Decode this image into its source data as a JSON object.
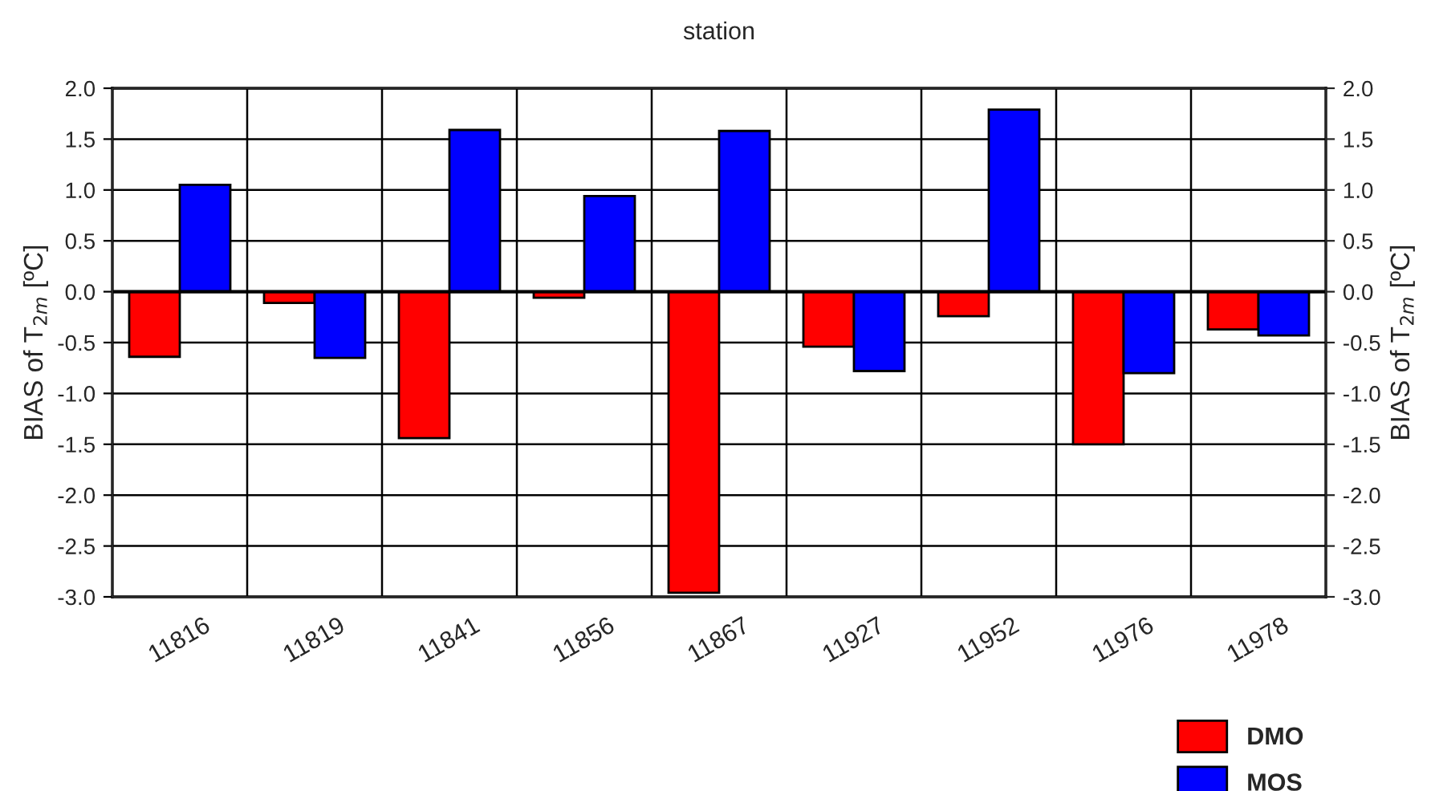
{
  "chart_data": {
    "type": "bar",
    "title": "station",
    "ylabel": "BIAS of T$_{2m}$ [ºC]",
    "y2label": "BIAS of T$_{2m}$ [ºC]",
    "categories": [
      "11816",
      "11819",
      "11841",
      "11856",
      "11867",
      "11927",
      "11952",
      "11976",
      "11978"
    ],
    "series": [
      {
        "name": "DMO",
        "color": "#ff0000",
        "values": [
          -0.64,
          -0.11,
          -1.44,
          -0.06,
          -2.96,
          -0.54,
          -0.24,
          -1.5,
          -0.37
        ]
      },
      {
        "name": "MOS",
        "color": "#0000ff",
        "values": [
          1.05,
          -0.65,
          1.59,
          0.94,
          1.58,
          -0.78,
          1.79,
          -0.8,
          -0.43
        ]
      }
    ],
    "ylim": [
      -3.0,
      2.0
    ],
    "yticks": [
      {
        "value": -3,
        "label": "-3.0"
      },
      {
        "value": -2.5,
        "label": "-2.5"
      },
      {
        "value": -2,
        "label": "-2.0"
      },
      {
        "value": -1.5,
        "label": "-1.5"
      },
      {
        "value": -1,
        "label": "-1.0"
      },
      {
        "value": -0.5,
        "label": "-0.5"
      },
      {
        "value": 0,
        "label": "0.0"
      },
      {
        "value": 0.5,
        "label": "0.5"
      },
      {
        "value": 1,
        "label": "1.0"
      },
      {
        "value": 1.5,
        "label": "1.5"
      },
      {
        "value": 2,
        "label": "2.0"
      }
    ],
    "y2lim": [
      -3.0,
      2.0
    ],
    "y2ticks": [
      {
        "value": -3,
        "label": "-3.0"
      },
      {
        "value": -2.5,
        "label": "-2.5"
      },
      {
        "value": -2,
        "label": "-2.0"
      },
      {
        "value": -1.5,
        "label": "-1.5"
      },
      {
        "value": -1,
        "label": "-1.0"
      },
      {
        "value": -0.5,
        "label": "-0.5"
      },
      {
        "value": 0,
        "label": "0.0"
      },
      {
        "value": 0.5,
        "label": "0.5"
      },
      {
        "value": 1,
        "label": "1.0"
      },
      {
        "value": 1.5,
        "label": "1.5"
      },
      {
        "value": 2,
        "label": "2.0"
      }
    ],
    "grid": true,
    "legend": "bottom right"
  }
}
